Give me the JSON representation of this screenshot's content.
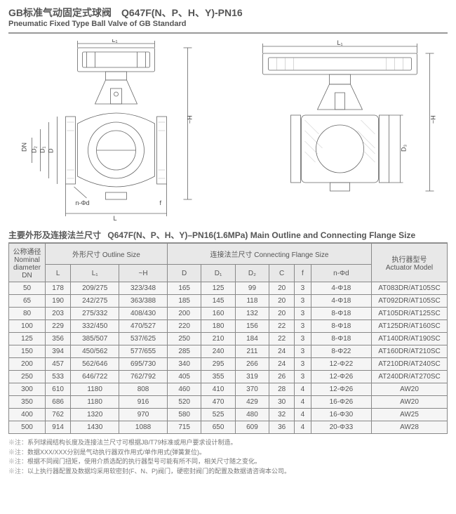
{
  "header": {
    "title_cn": "GB标准气动固定式球阀　Q647F(N、P、H、Y)-PN16",
    "title_en": "Pneumatic Fixed Type Ball Valve of GB Standard"
  },
  "section": {
    "title_cn": "主要外形及连接法兰尺寸",
    "title_model": "Q647F(N、P、H、Y)–PN16(1.6MPa)",
    "title_en": "Main Outline and Connecting Flange Size"
  },
  "diagram_labels": {
    "L1": "L₁",
    "H": "~H",
    "L": "L",
    "DN": "DN",
    "D": "D",
    "D1": "D₁",
    "D2": "D₂",
    "n_phi_d": "n-Φd",
    "f": "f",
    "D3": "D₃"
  },
  "table": {
    "head_dn_cn": "公称通径",
    "head_dn_en1": "Nominal",
    "head_dn_en2": "diameter",
    "head_dn_en3": "DN",
    "head_outline_cn": "外形尺寸 Outline Size",
    "head_flange_cn": "连接法兰尺寸 Connecting Flange Size",
    "head_actuator_cn": "执行器型号",
    "head_actuator_en": "Actuator Model",
    "cols": [
      "L",
      "L₁",
      "~H",
      "D",
      "D₁",
      "D₂",
      "C",
      "f",
      "n-Φd"
    ],
    "rows": [
      {
        "dn": "50",
        "L": "178",
        "L1": "209/275",
        "H": "323/348",
        "D": "165",
        "D1": "125",
        "D2": "99",
        "C": "20",
        "f": "3",
        "n": "4-Φ18",
        "act": "AT083DR/AT105SC"
      },
      {
        "dn": "65",
        "L": "190",
        "L1": "242/275",
        "H": "363/388",
        "D": "185",
        "D1": "145",
        "D2": "118",
        "C": "20",
        "f": "3",
        "n": "4-Φ18",
        "act": "AT092DR/AT105SC"
      },
      {
        "dn": "80",
        "L": "203",
        "L1": "275/332",
        "H": "408/430",
        "D": "200",
        "D1": "160",
        "D2": "132",
        "C": "20",
        "f": "3",
        "n": "8-Φ18",
        "act": "AT105DR/AT125SC"
      },
      {
        "dn": "100",
        "L": "229",
        "L1": "332/450",
        "H": "470/527",
        "D": "220",
        "D1": "180",
        "D2": "156",
        "C": "22",
        "f": "3",
        "n": "8-Φ18",
        "act": "AT125DR/AT160SC"
      },
      {
        "dn": "125",
        "L": "356",
        "L1": "385/507",
        "H": "537/625",
        "D": "250",
        "D1": "210",
        "D2": "184",
        "C": "22",
        "f": "3",
        "n": "8-Φ18",
        "act": "AT140DR/AT190SC"
      },
      {
        "dn": "150",
        "L": "394",
        "L1": "450/562",
        "H": "577/655",
        "D": "285",
        "D1": "240",
        "D2": "211",
        "C": "24",
        "f": "3",
        "n": "8-Φ22",
        "act": "AT160DR/AT210SC"
      },
      {
        "dn": "200",
        "L": "457",
        "L1": "562/646",
        "H": "695/730",
        "D": "340",
        "D1": "295",
        "D2": "266",
        "C": "24",
        "f": "3",
        "n": "12-Φ22",
        "act": "AT210DR/AT240SC"
      },
      {
        "dn": "250",
        "L": "533",
        "L1": "646/722",
        "H": "762/792",
        "D": "405",
        "D1": "355",
        "D2": "319",
        "C": "26",
        "f": "3",
        "n": "12-Φ26",
        "act": "AT240DR/AT270SC"
      },
      {
        "dn": "300",
        "L": "610",
        "L1": "1180",
        "H": "808",
        "D": "460",
        "D1": "410",
        "D2": "370",
        "C": "28",
        "f": "4",
        "n": "12-Φ26",
        "act": "AW20"
      },
      {
        "dn": "350",
        "L": "686",
        "L1": "1180",
        "H": "916",
        "D": "520",
        "D1": "470",
        "D2": "429",
        "C": "30",
        "f": "4",
        "n": "16-Φ26",
        "act": "AW20"
      },
      {
        "dn": "400",
        "L": "762",
        "L1": "1320",
        "H": "970",
        "D": "580",
        "D1": "525",
        "D2": "480",
        "C": "32",
        "f": "4",
        "n": "16-Φ30",
        "act": "AW25"
      },
      {
        "dn": "500",
        "L": "914",
        "L1": "1430",
        "H": "1088",
        "D": "715",
        "D1": "650",
        "D2": "609",
        "C": "36",
        "f": "4",
        "n": "20-Φ33",
        "act": "AW28"
      }
    ]
  },
  "notes": [
    "系列球阀结构长度及连接法兰尺寸可根据JB/T79标准或用户要求设计制造。",
    "数据XXX/XXX分别是气动执行器双作用式/单作用式(弹簧复位)。",
    "根据不同阀门扭矩，使用介质选配的执行器型号可能有所不同，相关尺寸随之变化。",
    "以上执行器配置及数据均采用软密封(F、N、P)阀门，硬密封阀门的配置及数据请咨询本公司。"
  ],
  "note_prefix": "※注："
}
